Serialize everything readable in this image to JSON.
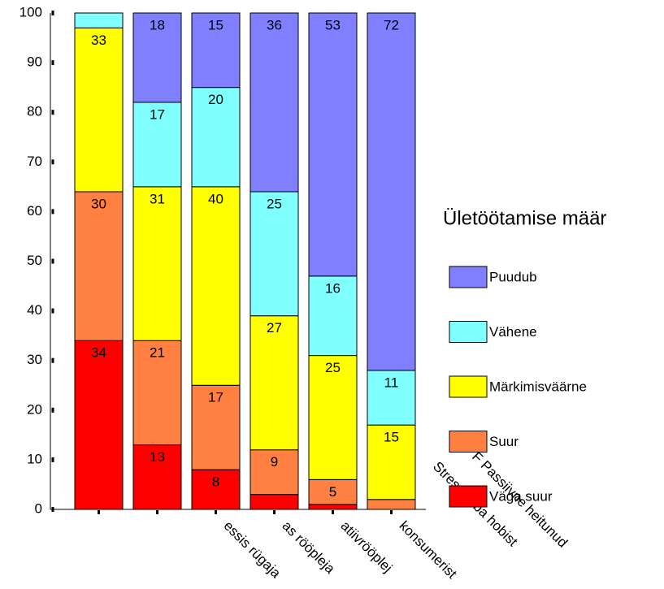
{
  "chart_data": {
    "type": "stacked_bar",
    "categories": [
      null,
      null,
      "essis rügaja",
      "as rööpleja",
      "atiivrööplej",
      "konsumerist"
    ],
    "series": [
      {
        "name": "Väga suur",
        "color": "#ff0000",
        "values": [
          34,
          13,
          8,
          3,
          1,
          0
        ],
        "value_labels": [
          "34",
          "13",
          "8",
          null,
          null,
          null
        ]
      },
      {
        "name": "Suur",
        "color": "#ff8040",
        "values": [
          30,
          21,
          17,
          9,
          5,
          2
        ],
        "value_labels": [
          "30",
          "21",
          "17",
          "9",
          "5",
          null
        ]
      },
      {
        "name": "Märkimisväärne",
        "color": "#ffff00",
        "values": [
          33,
          31,
          40,
          27,
          25,
          15
        ],
        "value_labels": [
          "33",
          "31",
          "40",
          "27",
          "25",
          "15"
        ]
      },
      {
        "name": "Vähene",
        "color": "#80ffff",
        "values": [
          3,
          17,
          20,
          25,
          16,
          11
        ],
        "value_labels": [
          null,
          "17",
          "20",
          "25",
          "16",
          "11"
        ]
      },
      {
        "name": "Puudub",
        "color": "#8080ff",
        "values": [
          0,
          18,
          15,
          36,
          53,
          72
        ],
        "value_labels": [
          null,
          "18",
          "15",
          "36",
          "53",
          "72"
        ]
      }
    ],
    "legend_title": "Ületöötamise määr",
    "annotations": [
      "Stressivaba hobist",
      "F Passiivne heitunud"
    ],
    "ylim": [
      0,
      100
    ],
    "yticks": [
      0,
      10,
      20,
      30,
      40,
      50,
      60,
      70,
      80,
      90,
      100
    ],
    "legend": "right",
    "grid": false
  }
}
